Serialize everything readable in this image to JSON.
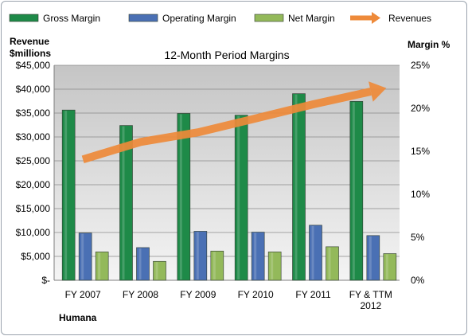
{
  "chart_data": {
    "type": "bar",
    "title": "12-Month Period Margins",
    "company": "Humana",
    "categories": [
      "FY 2007",
      "FY 2008",
      "FY 2009",
      "FY 2010",
      "FY 2011",
      "FY & TTM\n2012"
    ],
    "left_axis": {
      "label_line1": "Revenue",
      "label_line2": "$millions",
      "ylim": [
        0,
        45000
      ],
      "ticks": [
        0,
        5000,
        10000,
        15000,
        20000,
        25000,
        30000,
        35000,
        40000,
        45000
      ],
      "tick_labels": [
        "$-",
        "$5,000",
        "$10,000",
        "$15,000",
        "$20,000",
        "$25,000",
        "$30,000",
        "$35,000",
        "$40,000",
        "$45,000"
      ]
    },
    "right_axis": {
      "label": "Margin %",
      "ylim": [
        0,
        25
      ],
      "ticks": [
        0,
        5,
        10,
        15,
        20,
        25
      ],
      "tick_labels": [
        "0%",
        "5%",
        "10%",
        "15%",
        "20%",
        "25%"
      ]
    },
    "series": [
      {
        "name": "Gross Margin",
        "kind": "bar",
        "axis": "right",
        "color": "#1e8a48",
        "values": [
          19.8,
          18.0,
          19.4,
          19.2,
          21.7,
          20.8
        ]
      },
      {
        "name": "Operating Margin",
        "kind": "bar",
        "axis": "right",
        "color": "#4a70b4",
        "values": [
          5.5,
          3.8,
          5.7,
          5.6,
          6.4,
          5.2
        ]
      },
      {
        "name": "Net Margin",
        "kind": "bar",
        "axis": "right",
        "color": "#93b95a",
        "values": [
          3.3,
          2.2,
          3.4,
          3.3,
          3.9,
          3.1
        ]
      },
      {
        "name": "Revenues",
        "kind": "arrow-line",
        "axis": "left",
        "color": "#ee8a3a",
        "values": [
          25290,
          28946,
          30960,
          33868,
          36832,
          39500
        ]
      }
    ],
    "grid": true,
    "legend": "top"
  }
}
